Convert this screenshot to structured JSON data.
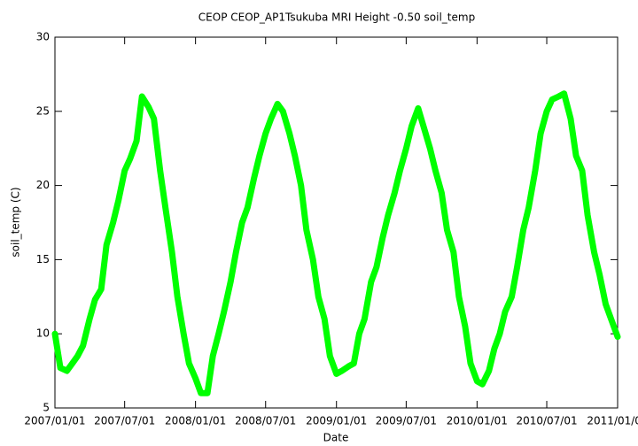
{
  "chart_data": {
    "type": "line",
    "title": "CEOP CEOP_AP1Tsukuba MRI Height -0.50 soil_temp",
    "x_label": "Date",
    "y_label": "soil_temp (C)",
    "color": "#00ff00",
    "x": [
      "2007/01/01",
      "2007/01/15",
      "2007/02/01",
      "2007/02/15",
      "2007/03/01",
      "2007/03/15",
      "2007/04/01",
      "2007/04/15",
      "2007/05/01",
      "2007/05/15",
      "2007/06/01",
      "2007/06/15",
      "2007/07/01",
      "2007/07/15",
      "2007/08/01",
      "2007/08/15",
      "2007/09/01",
      "2007/09/15",
      "2007/10/01",
      "2007/10/15",
      "2007/11/01",
      "2007/11/15",
      "2007/12/01",
      "2007/12/15",
      "2008/01/01",
      "2008/01/15",
      "2008/02/01",
      "2008/02/15",
      "2008/03/01",
      "2008/03/15",
      "2008/04/01",
      "2008/04/15",
      "2008/05/01",
      "2008/05/15",
      "2008/06/01",
      "2008/06/15",
      "2008/07/01",
      "2008/07/15",
      "2008/08/01",
      "2008/08/15",
      "2008/09/01",
      "2008/09/15",
      "2008/10/01",
      "2008/10/15",
      "2008/11/01",
      "2008/11/15",
      "2008/12/01",
      "2008/12/15",
      "2009/01/01",
      "2009/01/15",
      "2009/02/01",
      "2009/02/15",
      "2009/03/01",
      "2009/03/15",
      "2009/04/01",
      "2009/04/15",
      "2009/05/01",
      "2009/05/15",
      "2009/06/01",
      "2009/06/15",
      "2009/07/01",
      "2009/07/15",
      "2009/08/01",
      "2009/08/15",
      "2009/09/01",
      "2009/09/15",
      "2009/10/01",
      "2009/10/15",
      "2009/11/01",
      "2009/11/15",
      "2009/12/01",
      "2009/12/15",
      "2010/01/01",
      "2010/01/15",
      "2010/02/01",
      "2010/02/15",
      "2010/03/01",
      "2010/03/15",
      "2010/04/01",
      "2010/04/15",
      "2010/05/01",
      "2010/05/15",
      "2010/06/01",
      "2010/06/15",
      "2010/07/01",
      "2010/07/15",
      "2010/08/01",
      "2010/08/15",
      "2010/09/01",
      "2010/09/15",
      "2010/10/01",
      "2010/10/15",
      "2010/11/01",
      "2010/11/15",
      "2010/12/01",
      "2010/12/15",
      "2011/01/01"
    ],
    "values": [
      10,
      7.7,
      7.5,
      8,
      8.5,
      9.2,
      11,
      12.3,
      13,
      16,
      17.5,
      19,
      21,
      21.8,
      23,
      26,
      25.3,
      24.5,
      21,
      18.5,
      15.5,
      12.5,
      10,
      8,
      7,
      6,
      6,
      8.5,
      10,
      11.5,
      13.5,
      15.5,
      17.5,
      18.5,
      20.5,
      22,
      23.5,
      24.5,
      25.5,
      25,
      23.5,
      22,
      20,
      17,
      15,
      12.5,
      11,
      8.5,
      7.3,
      7.5,
      7.8,
      8,
      10,
      11,
      13.5,
      14.5,
      16.5,
      18,
      19.5,
      21,
      22.5,
      24,
      25.2,
      24,
      22.5,
      21,
      19.5,
      17,
      15.5,
      12.5,
      10.5,
      8,
      6.8,
      6.6,
      7.5,
      9,
      10,
      11.5,
      12.5,
      14.5,
      17,
      18.5,
      21,
      23.5,
      25,
      25.8,
      26,
      26.2,
      24.5,
      22,
      21,
      18,
      15.5,
      14,
      12,
      11,
      9.8
    ],
    "xlim": [
      "2007/01/01",
      "2011/01/01"
    ],
    "xticks": [
      "2007/01/01",
      "2007/07/01",
      "2008/01/01",
      "2008/07/01",
      "2009/01/01",
      "2009/07/01",
      "2010/01/01",
      "2010/07/01",
      "2011/01/01"
    ],
    "ylim": [
      5,
      30
    ],
    "yticks": [
      5,
      10,
      15,
      20,
      25,
      30
    ]
  }
}
